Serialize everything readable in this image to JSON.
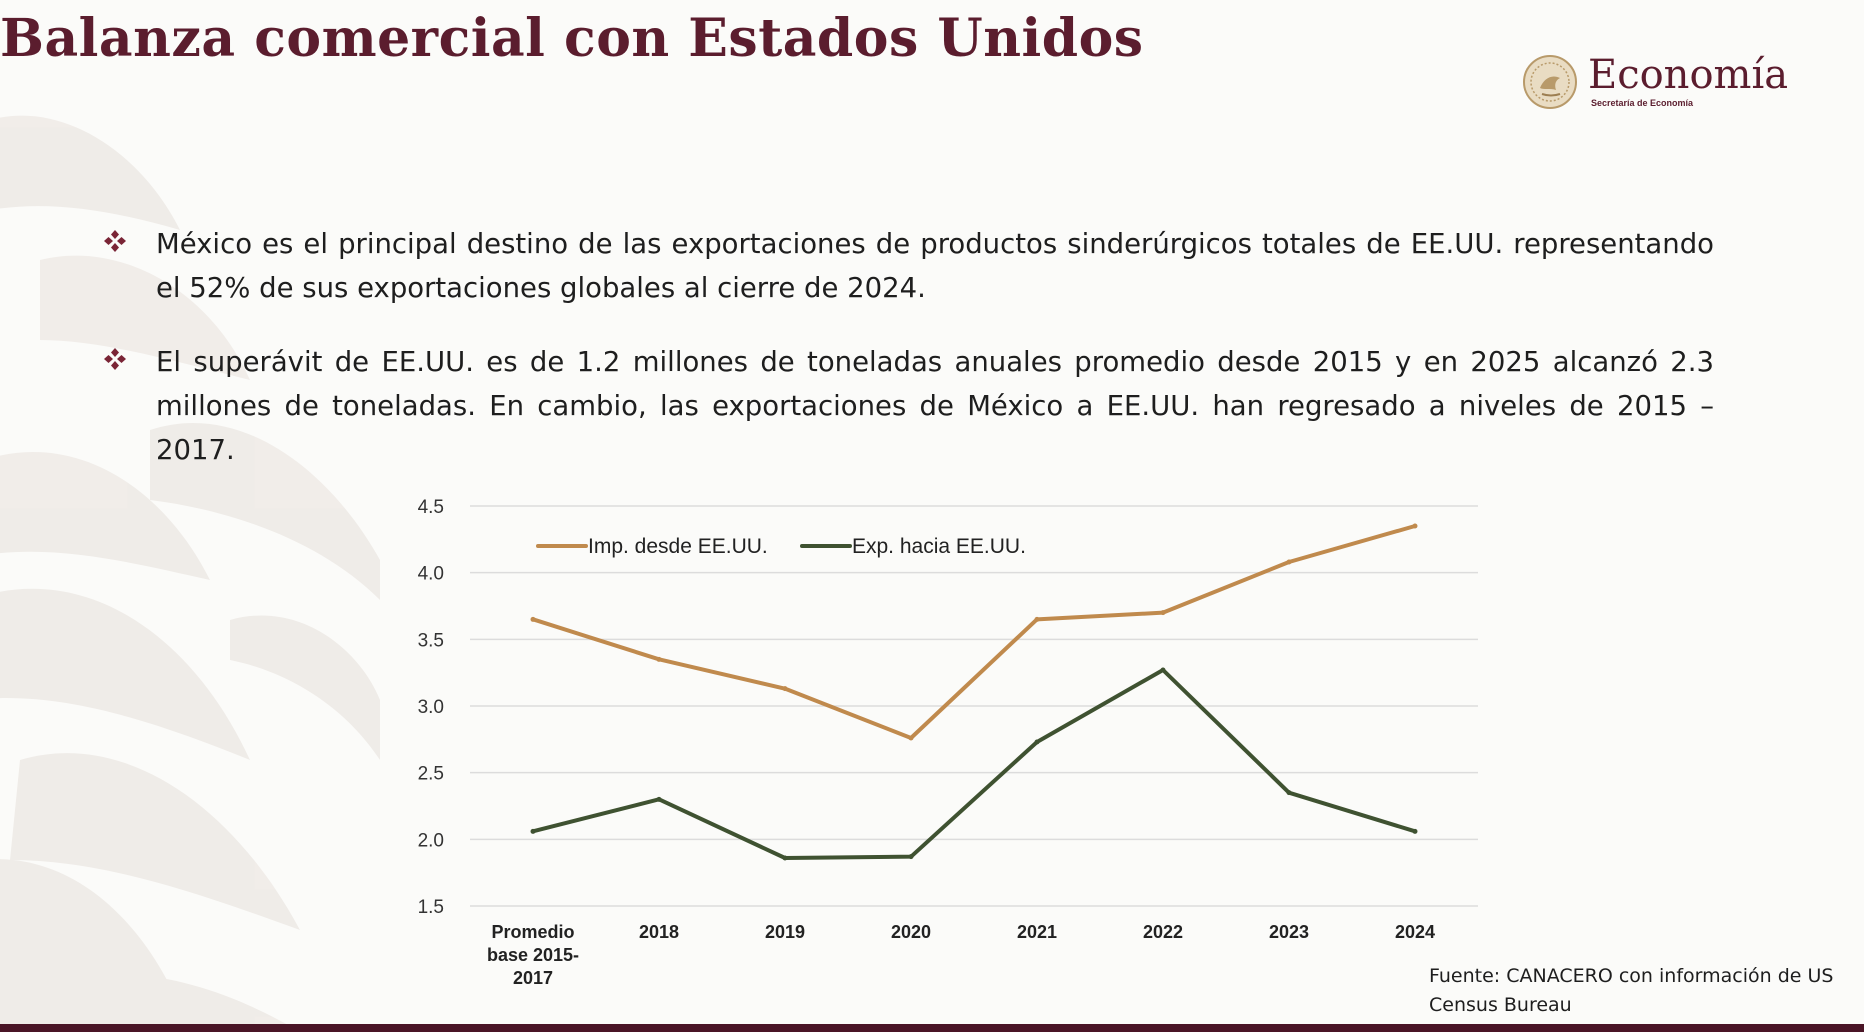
{
  "slide": {
    "title": "Balanza comercial con Estados Unidos"
  },
  "logo": {
    "name": "Economía",
    "subtitle": "Secretaría de Economía",
    "seal_icon": "eagle-seal-icon"
  },
  "bullets": [
    {
      "icon": "diamond-bullet-icon",
      "text": "México es el principal destino de las exportaciones de productos sinderúrgicos totales de EE.UU. representando el 52% de sus exportaciones globales al cierre de 2024."
    },
    {
      "icon": "diamond-bullet-icon",
      "text": "El superávit de EE.UU. es de 1.2 millones de toneladas anuales promedio desde 2015 y en 2025 alcanzó 2.3 millones de toneladas. En cambio, las exportaciones de México a EE.UU. han regresado a niveles de 2015 – 2017."
    }
  ],
  "chart_data": {
    "type": "line",
    "title": "",
    "xlabel": "",
    "ylabel": "",
    "categories": [
      [
        "Promedio",
        "base 2015-",
        "2017"
      ],
      [
        "2018"
      ],
      [
        "2019"
      ],
      [
        "2020"
      ],
      [
        "2021"
      ],
      [
        "2022"
      ],
      [
        "2023"
      ],
      [
        "2024"
      ]
    ],
    "ylim": [
      1.5,
      4.5
    ],
    "yticks": [
      "1.5",
      "2.0",
      "2.5",
      "3.0",
      "3.5",
      "4.0",
      "4.5"
    ],
    "grid": true,
    "legend_position": "top-left",
    "series": [
      {
        "name": "Imp. desde EE.UU.",
        "color": "#c08a4d",
        "values": [
          3.65,
          3.35,
          3.13,
          2.76,
          3.65,
          3.7,
          4.08,
          4.35
        ]
      },
      {
        "name": "Exp. hacia EE.UU.",
        "color": "#3f5231",
        "values": [
          2.06,
          2.3,
          1.86,
          1.87,
          2.73,
          3.27,
          2.35,
          2.06
        ]
      }
    ]
  },
  "source": "Fuente:  CANACERO con información de US Census Bureau",
  "colors": {
    "title": "#5b1d2e",
    "bullet": "#7a2536",
    "bottom_bar": "#4a1526",
    "gridline": "#dcdcdc"
  }
}
